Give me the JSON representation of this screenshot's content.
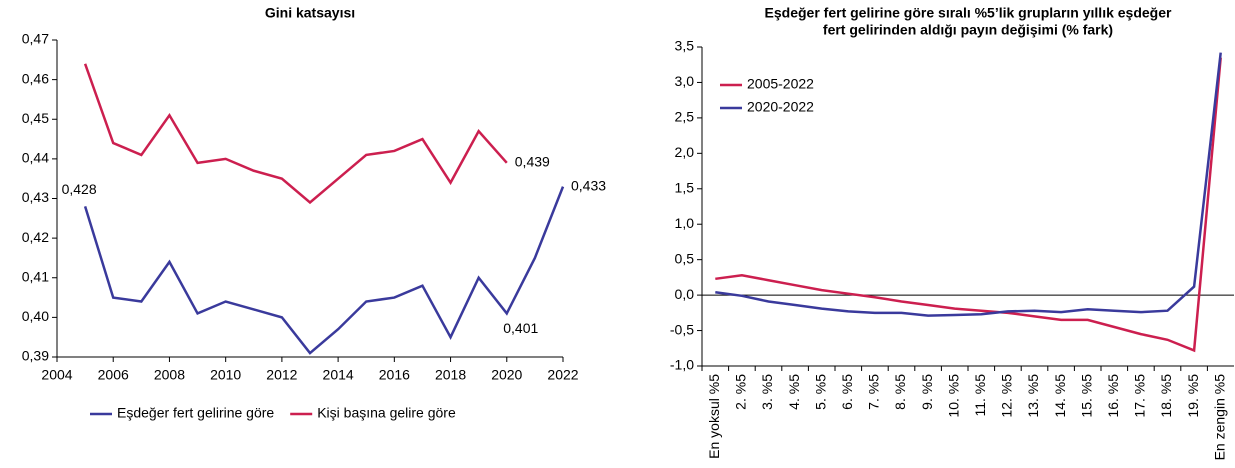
{
  "chart_data": [
    {
      "type": "line",
      "title": "Gini katsayısı",
      "x": [
        2005,
        2006,
        2007,
        2008,
        2009,
        2010,
        2011,
        2012,
        2013,
        2014,
        2015,
        2016,
        2017,
        2018,
        2019,
        2020,
        2021,
        2022
      ],
      "series": [
        {
          "name": "Eşdeğer fert gelirine göre",
          "color": "#3a3a9c",
          "values": [
            0.428,
            0.405,
            0.404,
            0.414,
            0.401,
            0.404,
            0.402,
            0.4,
            0.391,
            0.397,
            0.404,
            0.405,
            0.408,
            0.395,
            0.41,
            0.401,
            0.415,
            0.433
          ],
          "value_labels": [
            "0,428",
            null,
            null,
            null,
            null,
            null,
            null,
            null,
            null,
            null,
            null,
            null,
            null,
            null,
            null,
            "0,401",
            null,
            "0,433"
          ]
        },
        {
          "name": "Kişi başına gelire göre",
          "color": "#cc1f4f",
          "values": [
            0.464,
            0.444,
            0.441,
            0.451,
            0.439,
            0.44,
            0.437,
            0.435,
            0.429,
            0.435,
            0.441,
            0.442,
            0.445,
            0.434,
            0.447,
            0.439,
            null,
            null
          ],
          "value_labels": [
            null,
            null,
            null,
            null,
            null,
            null,
            null,
            null,
            null,
            null,
            null,
            null,
            null,
            null,
            null,
            "0,439",
            null,
            null
          ]
        }
      ],
      "xlim": [
        2004,
        2022
      ],
      "xticks": [
        2004,
        2006,
        2008,
        2010,
        2012,
        2014,
        2016,
        2018,
        2020,
        2022
      ],
      "ylim": [
        0.39,
        0.47
      ],
      "yticks": [
        {
          "value": 0.39,
          "label": "0,39"
        },
        {
          "value": 0.4,
          "label": "0,40"
        },
        {
          "value": 0.41,
          "label": "0,41"
        },
        {
          "value": 0.42,
          "label": "0,42"
        },
        {
          "value": 0.43,
          "label": "0,43"
        },
        {
          "value": 0.44,
          "label": "0,44"
        },
        {
          "value": 0.45,
          "label": "0,45"
        },
        {
          "value": 0.46,
          "label": "0,46"
        },
        {
          "value": 0.47,
          "label": "0,47"
        }
      ],
      "legend": "bottom",
      "grid": false
    },
    {
      "type": "line",
      "title": [
        "Eşdeğer fert gelirine göre sıralı %5’lik grupların yıllık eşdeğer",
        "fert gelirinden aldığı payın değişimi (% fark)"
      ],
      "categories": [
        "En yoksul %5",
        "2. %5",
        "3. %5",
        "4. %5",
        "5. %5",
        "6. %5",
        "7. %5",
        "8. %5",
        "9. %5",
        "10. %5",
        "11. %5",
        "12. %5",
        "13. %5",
        "14. %5",
        "15. %5",
        "16. %5",
        "17. %5",
        "18. %5",
        "19. %5",
        "En zengin %5"
      ],
      "series": [
        {
          "name": "2005-2022",
          "color": "#cc1f4f",
          "values": [
            0.23,
            0.28,
            0.21,
            0.14,
            0.07,
            0.02,
            -0.03,
            -0.09,
            -0.14,
            -0.19,
            -0.22,
            -0.25,
            -0.3,
            -0.35,
            -0.35,
            -0.45,
            -0.55,
            -0.63,
            -0.78,
            3.35
          ]
        },
        {
          "name": "2020-2022",
          "color": "#3a3a9c",
          "values": [
            0.04,
            -0.01,
            -0.09,
            -0.14,
            -0.19,
            -0.23,
            -0.25,
            -0.25,
            -0.29,
            -0.28,
            -0.27,
            -0.23,
            -0.22,
            -0.24,
            -0.2,
            -0.22,
            -0.24,
            -0.22,
            0.12,
            3.42
          ]
        }
      ],
      "ylim": [
        -1.0,
        3.5
      ],
      "yticks": [
        {
          "value": -1.0,
          "label": "-1,0"
        },
        {
          "value": -0.5,
          "label": "-0,5"
        },
        {
          "value": 0,
          "label": "0,0"
        },
        {
          "value": 0.5,
          "label": "0,5"
        },
        {
          "value": 1.0,
          "label": "1,0"
        },
        {
          "value": 1.5,
          "label": "1,5"
        },
        {
          "value": 2.0,
          "label": "2,0"
        },
        {
          "value": 2.5,
          "label": "2,5"
        },
        {
          "value": 3.0,
          "label": "3,0"
        },
        {
          "value": 3.5,
          "label": "3,5"
        }
      ],
      "legend": "upper-left",
      "zero_line": true,
      "grid": false
    }
  ]
}
